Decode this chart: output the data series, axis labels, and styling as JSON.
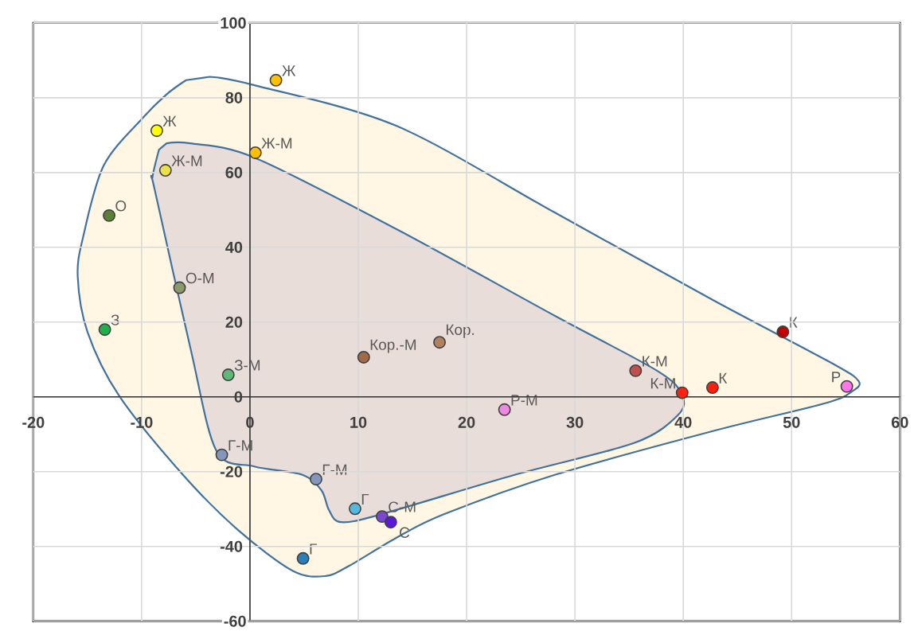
{
  "chart_data": {
    "type": "scatter",
    "xlim": [
      -20,
      60
    ],
    "ylim": [
      -60,
      100
    ],
    "xticks": [
      -20,
      -10,
      0,
      10,
      20,
      30,
      40,
      50,
      60
    ],
    "yticks": [
      -60,
      -40,
      -20,
      0,
      20,
      40,
      60,
      80,
      100
    ],
    "grid": true,
    "series": [
      {
        "type": "area",
        "color": "#fff7e3",
        "x": [
          -3.7,
          0.2,
          13.5,
          28.2,
          42.8,
          53.8,
          56.2,
          55.6,
          53.1,
          42.8,
          28.2,
          17.9,
          13.5,
          9.2,
          7.0,
          4.0,
          -1.1,
          -6.2,
          -12.1,
          -15.0,
          -15.9,
          -15.4,
          -13.5,
          -9.9,
          -7.7,
          -5.9
        ],
        "values": [
          85.6,
          83.5,
          72.5,
          49.2,
          25.8,
          8.9,
          4.2,
          1.5,
          -1.7,
          -9.1,
          -20.8,
          -31.4,
          -37.7,
          -45.1,
          -47.9,
          -46.6,
          -35.6,
          -20.8,
          0.4,
          17.4,
          32.2,
          42.8,
          61.9,
          74.6,
          80.9,
          84.7
        ]
      },
      {
        "type": "area",
        "color": "#e9ddda",
        "x": [
          -7.7,
          -5.5,
          0.4,
          13.5,
          28.2,
          37.7,
          39.9,
          39.5,
          35.5,
          24.5,
          12.1,
          8.4,
          7.3,
          6.6,
          4.8,
          0.4,
          -3.1,
          -5.5,
          -8.8,
          -9.0,
          -8.4
        ],
        "values": [
          67.8,
          67.8,
          64.0,
          44.9,
          21.6,
          6.8,
          0.4,
          -4.9,
          -12.3,
          -20.8,
          -31.4,
          -33.5,
          -30.3,
          -25.0,
          -20.8,
          -18.6,
          -14.4,
          13.1,
          55.5,
          58.7,
          66.1
        ]
      },
      {
        "x": [
          2.4,
          -8.6,
          0.5,
          -7.8,
          -13.0,
          -6.5,
          -13.4,
          -2.0,
          10.5,
          17.5,
          35.6,
          39.9,
          42.7,
          49.2,
          55.1,
          23.5,
          -2.6,
          6.1,
          9.7,
          12.2,
          13.0,
          4.9
        ],
        "values": [
          84.7,
          71.2,
          65.3,
          60.6,
          48.5,
          29.2,
          18.0,
          5.9,
          10.6,
          14.6,
          7.0,
          1.1,
          2.5,
          17.4,
          2.8,
          -3.4,
          -15.5,
          -22.0,
          -29.9,
          -32.0,
          -33.5,
          -43.2
        ],
        "colors": [
          "#ffc000",
          "#ffff00",
          "#ffc000",
          "#ebe04a",
          "#5b7f35",
          "#8a9a6a",
          "#1fb04c",
          "#5fb878",
          "#a0694a",
          "#b08060",
          "#c0504d",
          "#ff2010",
          "#ff2010",
          "#c00000",
          "#ff77e8",
          "#ee88e0",
          "#8496bc",
          "#8496bc",
          "#56b8dc",
          "#7a48d0",
          "#5a18d8",
          "#2a80b8"
        ]
      }
    ],
    "annotations": [
      {
        "text": "Ж",
        "x": 2.4,
        "y": 84.7
      },
      {
        "text": "Ж",
        "x": -8.6,
        "y": 71.2
      },
      {
        "text": "Ж-М",
        "x": 0.5,
        "y": 65.3
      },
      {
        "text": "Ж-М",
        "x": -7.8,
        "y": 60.6
      },
      {
        "text": "О",
        "x": -13.0,
        "y": 48.5
      },
      {
        "text": "О-М",
        "x": -6.5,
        "y": 29.2
      },
      {
        "text": "З",
        "x": -13.4,
        "y": 18.0
      },
      {
        "text": "З-М",
        "x": -2.0,
        "y": 5.9
      },
      {
        "text": "Кор.-М",
        "x": 10.5,
        "y": 10.6
      },
      {
        "text": "Кор.",
        "x": 17.5,
        "y": 14.6
      },
      {
        "text": "К-М",
        "x": 35.6,
        "y": 7.0
      },
      {
        "text": "К-М",
        "x": 39.9,
        "y": 1.1
      },
      {
        "text": "К",
        "x": 42.7,
        "y": 2.5
      },
      {
        "text": "К",
        "x": 49.2,
        "y": 17.4
      },
      {
        "text": "Р",
        "x": 55.1,
        "y": 2.8
      },
      {
        "text": "Р-М",
        "x": 23.5,
        "y": -3.4
      },
      {
        "text": "Г-М",
        "x": -2.6,
        "y": -15.5
      },
      {
        "text": "Г-М",
        "x": 6.1,
        "y": -22.0
      },
      {
        "text": "Г",
        "x": 9.7,
        "y": -29.9
      },
      {
        "text": "С-М",
        "x": 12.2,
        "y": -32.0
      },
      {
        "text": "С",
        "x": 13.0,
        "y": -33.5
      },
      {
        "text": "Г",
        "x": 4.9,
        "y": -43.2
      }
    ]
  }
}
